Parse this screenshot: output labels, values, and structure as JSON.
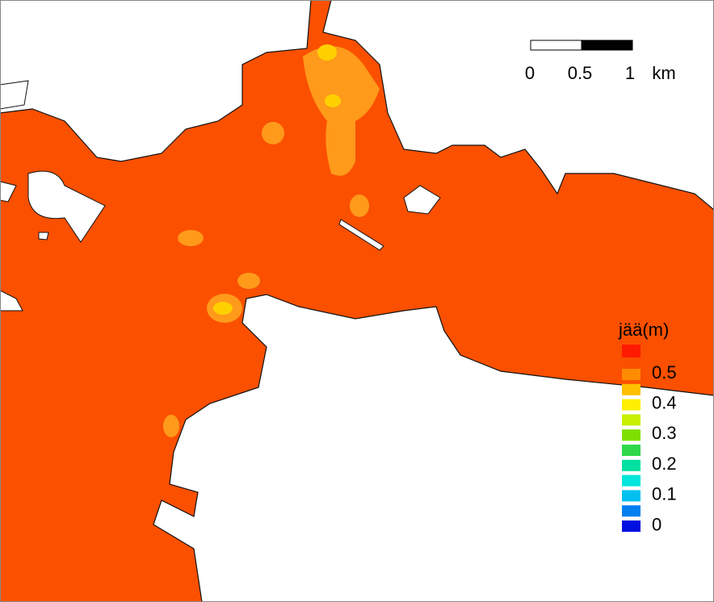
{
  "scale_bar": {
    "labels": [
      "0",
      "0.5",
      "1"
    ],
    "unit": "km"
  },
  "legend": {
    "title": "jää(m)",
    "colors": [
      "#ff1a00",
      "#ff8c00",
      "#ffc000",
      "#ffef00",
      "#c8f000",
      "#7ee000",
      "#2ed84a",
      "#00e0a0",
      "#00e6dc",
      "#00c0f0",
      "#0080f0",
      "#0010e0"
    ],
    "labels": [
      "0.5",
      "0.4",
      "0.3",
      "0.2",
      "0.1",
      "0"
    ]
  }
}
